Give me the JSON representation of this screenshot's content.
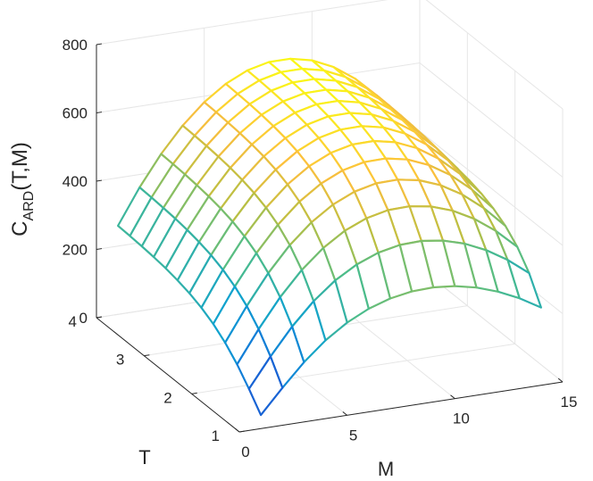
{
  "chart_data": {
    "type": "surface",
    "xlabel": "M",
    "ylabel": "T",
    "zlabel": {
      "main": "C",
      "subscript": "ARD",
      "args": "(T,M)"
    },
    "xlim": [
      0,
      15
    ],
    "ylim": [
      1,
      4
    ],
    "zlim": [
      0,
      800
    ],
    "xticks": [
      "0",
      "5",
      "10",
      "15"
    ],
    "yticks": [
      "1",
      "2",
      "3",
      "4"
    ],
    "zticks": [
      "0",
      "200",
      "400",
      "600",
      "800"
    ],
    "grid": true,
    "colormap": "parula",
    "M": [
      1,
      2,
      3,
      4,
      5,
      6,
      7,
      8,
      9,
      10,
      11,
      12,
      13,
      14
    ],
    "T": [
      1.0,
      1.25,
      1.5,
      1.75,
      2.0,
      2.25,
      2.5,
      2.75,
      3.0,
      3.25,
      3.5,
      3.75,
      4.0
    ],
    "z_peak": 676,
    "z_min": 34
  }
}
